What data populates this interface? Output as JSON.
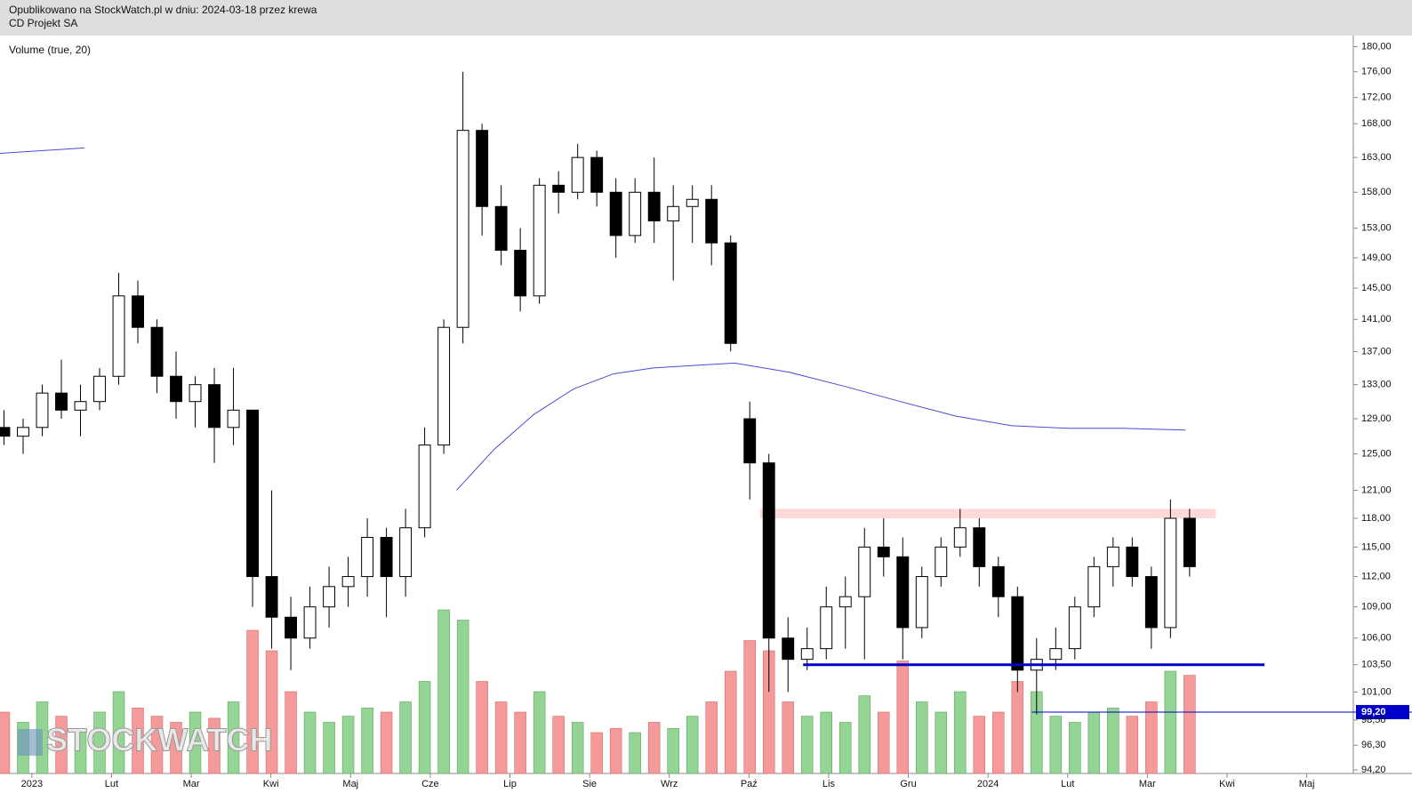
{
  "chart_data": {
    "type": "candlestick",
    "header": "Opublikowano na StockWatch.pl w dniu: 2024-03-18 przez krewa",
    "title": "CD Projekt SA",
    "indicator": "Volume (true, 20)",
    "watermark": "STOCKWATCH",
    "log_scale": true,
    "ylim": [
      93.9,
      181.8
    ],
    "yticks": [
      {
        "value": 180,
        "label": "180,00"
      },
      {
        "value": 176,
        "label": "176,00"
      },
      {
        "value": 172,
        "label": "172,00"
      },
      {
        "value": 168,
        "label": "168,00"
      },
      {
        "value": 163,
        "label": "163,00"
      },
      {
        "value": 158,
        "label": "158,00"
      },
      {
        "value": 153,
        "label": "153,00"
      },
      {
        "value": 149,
        "label": "149,00"
      },
      {
        "value": 145,
        "label": "145,00"
      },
      {
        "value": 141,
        "label": "141,00"
      },
      {
        "value": 137,
        "label": "137,00"
      },
      {
        "value": 133,
        "label": "133,00"
      },
      {
        "value": 129,
        "label": "129,00"
      },
      {
        "value": 125,
        "label": "125,00"
      },
      {
        "value": 121,
        "label": "121,00"
      },
      {
        "value": 118,
        "label": "118,00"
      },
      {
        "value": 115,
        "label": "115,00"
      },
      {
        "value": 112,
        "label": "112,00"
      },
      {
        "value": 109,
        "label": "109,00"
      },
      {
        "value": 106,
        "label": "106,00"
      },
      {
        "value": 103.5,
        "label": "103,50"
      },
      {
        "value": 101,
        "label": "101,00"
      },
      {
        "value": 98.5,
        "label": "98,50"
      },
      {
        "value": 96.3,
        "label": "96,30"
      },
      {
        "value": 94.2,
        "label": "94,20"
      }
    ],
    "xlim": [
      -0.4,
      16.585
    ],
    "xticks": [
      {
        "value": 0,
        "label": "2023"
      },
      {
        "value": 1,
        "label": "Lut"
      },
      {
        "value": 2,
        "label": "Mar"
      },
      {
        "value": 3,
        "label": "Kwi"
      },
      {
        "value": 4,
        "label": "Maj"
      },
      {
        "value": 5,
        "label": "Cze"
      },
      {
        "value": 6,
        "label": "Lip"
      },
      {
        "value": 7,
        "label": "Sie"
      },
      {
        "value": 8,
        "label": "Wrz"
      },
      {
        "value": 9,
        "label": "Paź"
      },
      {
        "value": 10,
        "label": "Lis"
      },
      {
        "value": 11,
        "label": "Gru"
      },
      {
        "value": 12,
        "label": "2024"
      },
      {
        "value": 13,
        "label": "Lut"
      },
      {
        "value": 14,
        "label": "Mar"
      },
      {
        "value": 15,
        "label": "Kwi"
      },
      {
        "value": 16,
        "label": "Maj"
      }
    ],
    "x": [
      -0.35,
      -0.11,
      0.13,
      0.37,
      0.61,
      0.85,
      1.09,
      1.33,
      1.57,
      1.81,
      2.05,
      2.29,
      2.53,
      2.77,
      3.01,
      3.25,
      3.49,
      3.73,
      3.97,
      4.21,
      4.45,
      4.69,
      4.93,
      5.17,
      5.41,
      5.65,
      5.89,
      6.13,
      6.37,
      6.61,
      6.85,
      7.09,
      7.33,
      7.57,
      7.81,
      8.05,
      8.29,
      8.53,
      8.77,
      9.01,
      9.25,
      9.49,
      9.73,
      9.97,
      10.21,
      10.45,
      10.69,
      10.93,
      11.17,
      11.41,
      11.65,
      11.89,
      12.13,
      12.37,
      12.61,
      12.85,
      13.09,
      13.33,
      13.57,
      13.81,
      14.05,
      14.29,
      14.53
    ],
    "open": [
      128,
      127,
      128,
      132,
      130,
      131,
      134,
      144,
      140,
      134,
      131,
      133,
      128,
      130,
      112,
      108,
      106,
      109,
      111,
      112,
      116,
      112,
      117,
      126,
      140,
      167,
      156,
      150,
      144,
      159,
      158,
      163,
      158,
      152,
      158,
      154,
      156,
      157,
      151,
      129,
      124,
      106,
      104,
      105,
      109,
      110,
      115,
      114,
      107,
      112,
      115,
      117,
      113,
      110,
      103,
      104,
      105,
      109,
      113,
      115,
      112,
      107,
      118
    ],
    "high": [
      130,
      129,
      133,
      136,
      133,
      135,
      147,
      146,
      141,
      137,
      134,
      135,
      135,
      130,
      121,
      110,
      111,
      113,
      114,
      118,
      117,
      119,
      128,
      141,
      176,
      168,
      159,
      153,
      160,
      161,
      165,
      164,
      160,
      160,
      163,
      159,
      159,
      159,
      152,
      131,
      125,
      108,
      107,
      111,
      112,
      117,
      118,
      116,
      113,
      116,
      119,
      118,
      114,
      111,
      106,
      107,
      110,
      114,
      116,
      116,
      113,
      120,
      119
    ],
    "low": [
      126,
      125,
      127,
      129,
      127,
      130,
      133,
      138,
      132,
      129,
      128,
      124,
      126,
      109,
      105,
      103,
      105,
      107,
      109,
      110,
      108,
      110,
      116,
      125,
      138,
      152,
      148,
      142,
      143,
      155,
      157,
      156,
      149,
      151,
      151,
      146,
      151,
      148,
      137,
      120,
      101,
      101,
      103,
      104,
      105,
      104,
      112,
      104,
      106,
      111,
      114,
      111,
      108,
      101,
      99,
      103,
      104,
      108,
      111,
      111,
      105,
      106,
      112
    ],
    "close": [
      127,
      128,
      132,
      130,
      131,
      134,
      144,
      140,
      134,
      131,
      133,
      128,
      130,
      112,
      108,
      106,
      109,
      111,
      112,
      116,
      112,
      117,
      126,
      140,
      167,
      156,
      150,
      144,
      159,
      158,
      163,
      158,
      152,
      158,
      154,
      156,
      157,
      151,
      138,
      124,
      106,
      104,
      105,
      109,
      110,
      115,
      114,
      107,
      112,
      115,
      117,
      113,
      110,
      103,
      104,
      105,
      109,
      113,
      115,
      112,
      107,
      118,
      113
    ],
    "volume": [
      30,
      25,
      35,
      28,
      22,
      30,
      40,
      32,
      28,
      25,
      30,
      27,
      35,
      70,
      60,
      40,
      30,
      25,
      28,
      32,
      30,
      35,
      45,
      80,
      75,
      45,
      35,
      30,
      40,
      28,
      25,
      20,
      22,
      20,
      25,
      22,
      28,
      35,
      50,
      65,
      60,
      35,
      28,
      30,
      25,
      38,
      30,
      55,
      35,
      30,
      40,
      28,
      30,
      45,
      40,
      28,
      25,
      30,
      32,
      28,
      35,
      50,
      48
    ],
    "volume_lim": [
      0,
      100
    ],
    "up_color": "#ffffff",
    "down_color": "#000000",
    "volume_up_color": "#94d494",
    "volume_down_color": "#f49a9a",
    "ma": {
      "color": "#4a4ad8",
      "x": [
        -0.4,
        0.66,
        null,
        5.33,
        5.8,
        6.3,
        6.8,
        7.3,
        7.8,
        8.3,
        8.82,
        9.5,
        10.2,
        10.9,
        11.6,
        12.3,
        13,
        13.7,
        14.48
      ],
      "values": [
        163.6,
        164.4,
        null,
        121,
        125.5,
        129.5,
        132.5,
        134.3,
        135,
        135.3,
        135.6,
        134.5,
        132.8,
        131,
        129.3,
        128.2,
        127.9,
        127.9,
        127.7
      ]
    },
    "levels": [
      {
        "from": 118,
        "to": 119,
        "x": [
          9.14,
          14.86
        ],
        "color": "#ffd8d8"
      },
      {
        "value": 103.5,
        "x": [
          9.68,
          15.47
        ],
        "color": "#0000cc"
      },
      {
        "value": {
          "value": 99.2,
          "label": "99,20"
        },
        "x": [
          12.55,
          16.585
        ],
        "color": "#0000cc"
      }
    ]
  }
}
